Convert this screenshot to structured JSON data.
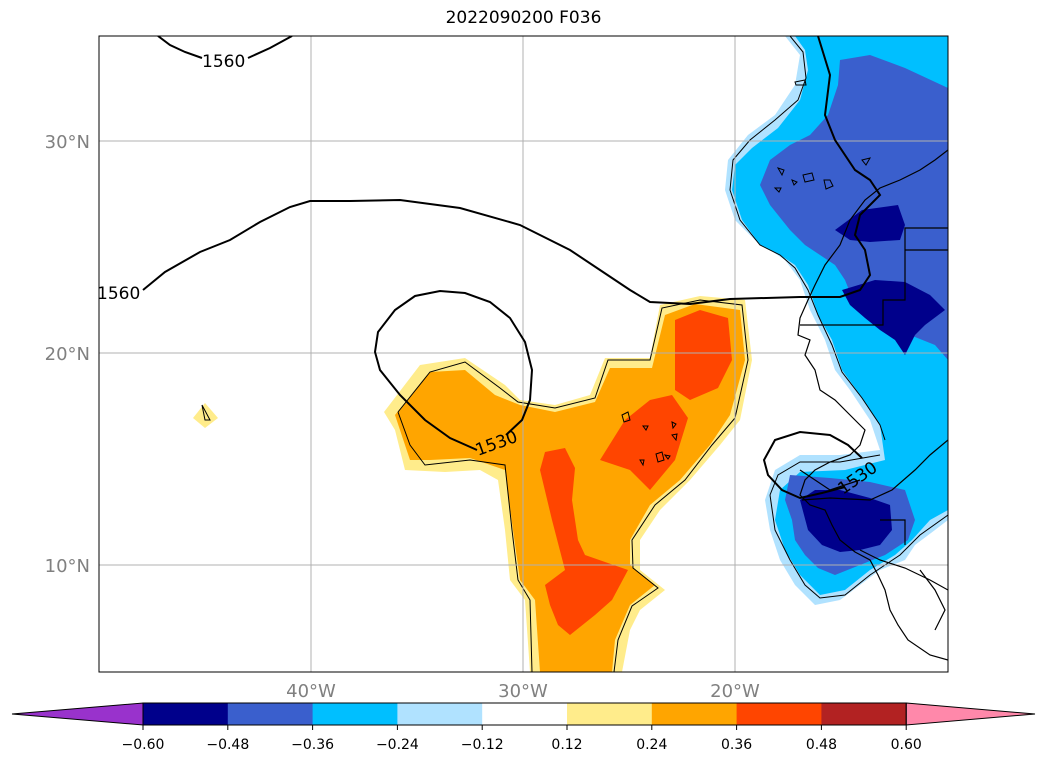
{
  "title": "2022090200 F036",
  "map": {
    "lat_labels": [
      "30°N",
      "20°N",
      "10°N"
    ],
    "lon_labels": [
      "40°W",
      "30°W",
      "20°W"
    ],
    "contour_labels": [
      "1560",
      "1560",
      "1530",
      "1530"
    ]
  },
  "colorbar": {
    "ticks": [
      "−0.60",
      "−0.48",
      "−0.36",
      "−0.24",
      "−0.12",
      "0.12",
      "0.24",
      "0.36",
      "0.48",
      "0.60"
    ],
    "colors": [
      "#9932CC",
      "#00008B",
      "#3A5FCD",
      "#00BFFF",
      "#B0E2FF",
      "#FFFFFF",
      "#FFEC8B",
      "#FFA500",
      "#FF4500",
      "#B22222",
      "#FF88AA"
    ]
  }
}
